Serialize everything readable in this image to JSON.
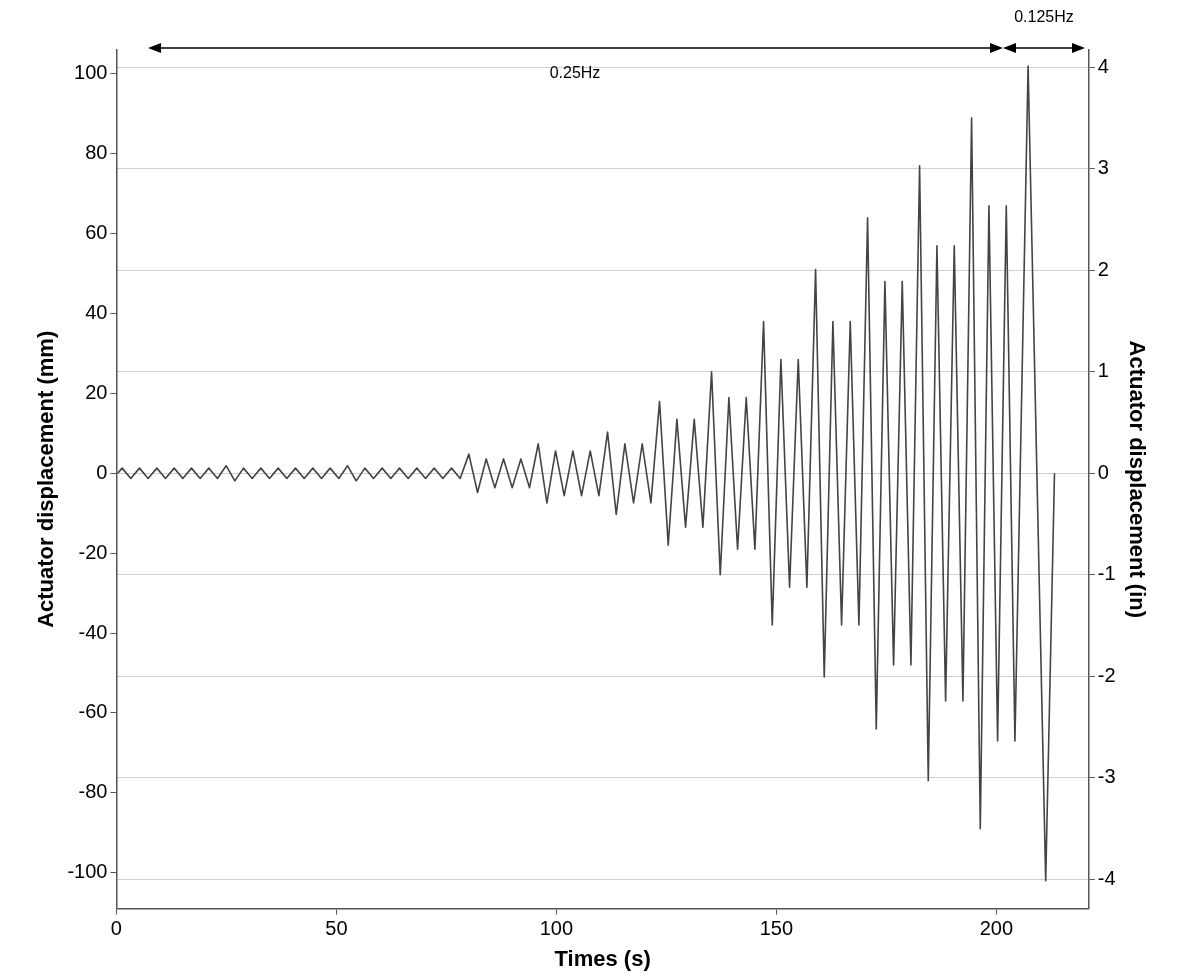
{
  "chart_data": {
    "type": "line",
    "xlabel": "Times (s)",
    "ylabel": "Actuator displacement (mm)",
    "y2label": "Actuator displacement (in)",
    "xlim": [
      0,
      221
    ],
    "xticks": [
      0,
      50,
      100,
      150,
      200
    ],
    "ylim": [
      -109,
      106
    ],
    "yticks": [
      -100,
      -80,
      -60,
      -40,
      -20,
      0,
      20,
      40,
      60,
      80,
      100
    ],
    "y2lim": [
      -4.29,
      4.17
    ],
    "y2ticks": [
      -4,
      -3,
      -2,
      -1,
      0,
      1,
      2,
      3,
      4
    ],
    "grid": "y",
    "legend": false,
    "marker": "none",
    "line_style": "solid",
    "annotations": [
      "0.25Hz",
      "0.125Hz"
    ],
    "series": [
      {
        "color": "#444444",
        "x": [
          0.3,
          1.3,
          3.27,
          5.24,
          7.21,
          9.18,
          11.15,
          13.12,
          15.09,
          17.06,
          19.03,
          21.0,
          22.97,
          24.94,
          26.91,
          28.88,
          30.85,
          32.82,
          34.79,
          36.76,
          38.73,
          40.7,
          42.67,
          44.64,
          46.61,
          48.58,
          50.55,
          52.52,
          54.49,
          56.46,
          58.43,
          60.4,
          62.37,
          64.34,
          66.31,
          68.28,
          70.25,
          72.22,
          74.19,
          76.16,
          78.13,
          80.1,
          82.07,
          84.04,
          86.01,
          87.98,
          89.95,
          91.92,
          93.89,
          95.86,
          97.83,
          99.8,
          101.77,
          103.74,
          105.71,
          107.68,
          109.65,
          111.62,
          113.59,
          115.56,
          117.53,
          119.5,
          121.47,
          123.44,
          125.41,
          127.38,
          129.35,
          131.32,
          133.29,
          135.26,
          137.23,
          139.2,
          141.17,
          143.14,
          145.11,
          147.08,
          149.05,
          151.02,
          152.99,
          154.96,
          156.93,
          158.9,
          160.87,
          162.84,
          164.81,
          166.78,
          168.75,
          170.72,
          172.69,
          174.66,
          176.63,
          178.6,
          180.57,
          182.54,
          184.51,
          186.48,
          188.45,
          190.42,
          192.39,
          194.36,
          196.33,
          198.3,
          200.27,
          202.24,
          204.21,
          207.2,
          211.2,
          213.2
        ],
        "values": [
          0,
          1.3,
          -1.3,
          1.3,
          -1.3,
          1.3,
          -1.3,
          1.3,
          -1.3,
          1.3,
          -1.3,
          1.3,
          -1.3,
          1.9,
          -1.9,
          1.3,
          -1.3,
          1.3,
          -1.3,
          1.3,
          -1.3,
          1.3,
          -1.3,
          1.3,
          -1.3,
          1.3,
          -1.3,
          1.9,
          -1.9,
          1.3,
          -1.3,
          1.3,
          -1.3,
          1.3,
          -1.3,
          1.3,
          -1.3,
          1.3,
          -1.3,
          1.3,
          -1.3,
          4.8,
          -4.8,
          3.6,
          -3.6,
          3.6,
          -3.6,
          3.6,
          -3.6,
          7.4,
          -7.4,
          5.6,
          -5.6,
          5.6,
          -5.6,
          5.6,
          -5.6,
          10.3,
          -10.3,
          7.4,
          -7.4,
          7.4,
          -7.4,
          18,
          -18,
          13.5,
          -13.5,
          13.5,
          -13.5,
          25.4,
          -25.4,
          19,
          -19,
          19,
          -19,
          38,
          -38,
          28.5,
          -28.5,
          28.5,
          -28.5,
          51,
          -51,
          38,
          -38,
          38,
          -38,
          64,
          -64,
          48,
          -48,
          48,
          -48,
          77,
          -77,
          57,
          -57,
          57,
          -57,
          89,
          -89,
          67,
          -67,
          67,
          -67,
          102,
          -102,
          0
        ]
      }
    ]
  }
}
